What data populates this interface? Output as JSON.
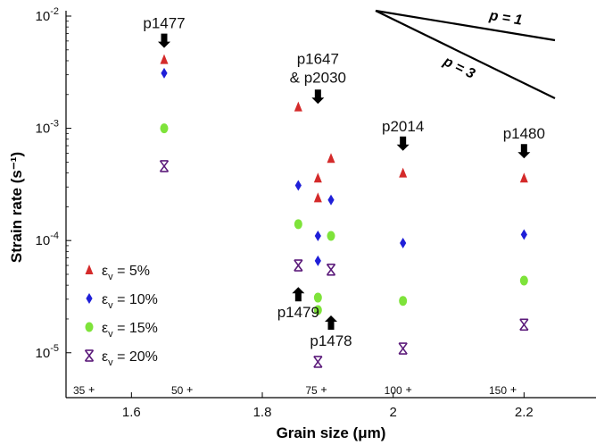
{
  "chart_data": {
    "type": "scatter",
    "xlabel": "Grain size (μm)",
    "ylabel": "Strain rate (s⁻¹)",
    "xlim": [
      1.5,
      2.31
    ],
    "ylim_log10": [
      -5.4,
      -2
    ],
    "yscale": "log",
    "grid": false,
    "legend_position": "bottom-left",
    "x_ticks": [
      {
        "value": 1.6,
        "label": "1.6"
      },
      {
        "value": 1.8,
        "label": "1.8"
      },
      {
        "value": 2.0,
        "label": "2"
      },
      {
        "value": 2.2,
        "label": "2.2"
      }
    ],
    "y_ticks": [
      {
        "exp": -2,
        "label": "10",
        "sup": "-2"
      },
      {
        "exp": -3,
        "label": "10",
        "sup": "-3"
      },
      {
        "exp": -4,
        "label": "10",
        "sup": "-4"
      },
      {
        "exp": -5,
        "label": "10",
        "sup": "-5"
      }
    ],
    "series": [
      {
        "name": "εv = 5%",
        "legend_main": "ε",
        "legend_sub": "v",
        "legend_rest": " = 5%",
        "marker": "triangle",
        "color": "#d42a2a",
        "x": [
          1.65,
          1.855,
          1.885,
          1.885,
          1.905,
          2.015,
          2.2
        ],
        "y": [
          0.0041,
          0.00155,
          0.00036,
          0.00024,
          0.00054,
          0.0004,
          0.00036
        ]
      },
      {
        "name": "εv = 10%",
        "legend_main": "ε",
        "legend_sub": "v",
        "legend_rest": " = 10%",
        "marker": "diamond",
        "color": "#1f1fd8",
        "x": [
          1.65,
          1.855,
          1.885,
          1.885,
          1.905,
          2.015,
          2.2
        ],
        "y": [
          0.0031,
          0.00031,
          0.00011,
          6.6e-05,
          0.00023,
          9.5e-05,
          0.000113
        ]
      },
      {
        "name": "εv = 15%",
        "legend_main": "ε",
        "legend_sub": "v",
        "legend_rest": " = 15%",
        "marker": "circle",
        "color": "#7ee33a",
        "x": [
          1.65,
          1.855,
          1.885,
          1.885,
          1.905,
          2.015,
          2.2
        ],
        "y": [
          0.001,
          0.00014,
          3.1e-05,
          2.4e-05,
          0.00011,
          2.9e-05,
          4.4e-05
        ]
      },
      {
        "name": "εv = 20%",
        "legend_main": "ε",
        "legend_sub": "v",
        "legend_rest": " = 20%",
        "marker": "asterisk",
        "color": "#5b1a7a",
        "x": [
          1.65,
          1.855,
          1.885,
          1.905,
          2.015,
          2.2
        ],
        "y": [
          0.00046,
          6e-05,
          8.3e-06,
          5.5e-05,
          1.09e-05,
          1.78e-05
        ]
      }
    ],
    "sample_labels": [
      {
        "text": "p1477",
        "line2": "",
        "arrow": "down",
        "ax": 1.65,
        "ay": 0.0052
      },
      {
        "text": "p1647",
        "line2": "& p2030",
        "arrow": "down",
        "ax": 1.885,
        "ay": 0.00165
      },
      {
        "text": "p2014",
        "line2": "",
        "arrow": "down",
        "ax": 2.015,
        "ay": 0.00063
      },
      {
        "text": "p1480",
        "line2": "",
        "arrow": "down",
        "ax": 2.2,
        "ay": 0.00054
      },
      {
        "text": "p1479",
        "line2": "",
        "arrow": "up",
        "ax": 1.855,
        "ay": 3.85e-05
      },
      {
        "text": "p1478",
        "line2": "",
        "arrow": "up",
        "ax": 1.905,
        "ay": 2.15e-05
      }
    ],
    "temperature_labels": [
      {
        "text": "35",
        "x": 1.52
      },
      {
        "text": "50",
        "x": 1.67
      },
      {
        "text": "75",
        "x": 1.875
      },
      {
        "text": "100",
        "x": 2.0
      },
      {
        "text": "150",
        "x": 2.16
      }
    ],
    "slope_labels": [
      {
        "text": "p = 1"
      },
      {
        "text": "p = 3"
      }
    ]
  }
}
